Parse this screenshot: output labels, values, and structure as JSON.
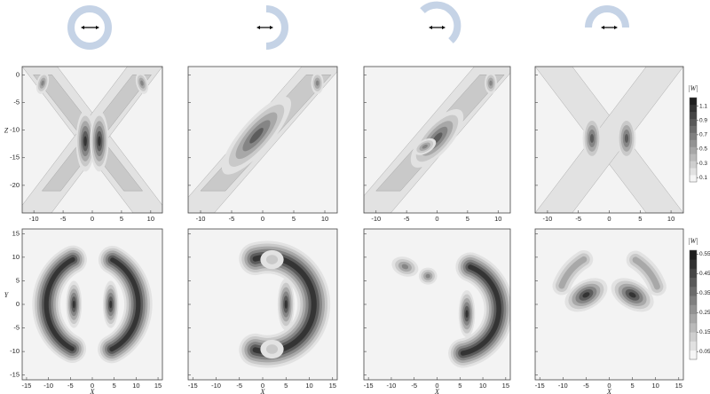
{
  "chart_data": [
    {
      "type": "contour",
      "xlim": [
        -12,
        12
      ],
      "ylim": [
        -25,
        1.5
      ],
      "xticks": [
        -10,
        -5,
        0,
        5,
        10
      ],
      "yticks": [
        0,
        -5,
        -10,
        -15,
        -20
      ],
      "ylabel": "Z",
      "ytick_labels": true
    },
    {
      "type": "contour",
      "xlim": [
        -12,
        12
      ],
      "ylim": [
        -25,
        1.5
      ],
      "xticks": [
        -10,
        -5,
        0,
        5,
        10
      ],
      "yticks": [
        0,
        -5,
        -10,
        -15,
        -20
      ],
      "ytick_labels": false
    },
    {
      "type": "contour",
      "xlim": [
        -12,
        12
      ],
      "ylim": [
        -25,
        1.5
      ],
      "xticks": [
        -10,
        -5,
        0,
        5,
        10
      ],
      "yticks": [
        0,
        -5,
        -10,
        -15,
        -20
      ],
      "ytick_labels": false
    },
    {
      "type": "contour",
      "xlim": [
        -12,
        12
      ],
      "ylim": [
        -25,
        1.5
      ],
      "xticks": [
        -10,
        -5,
        0,
        5,
        10
      ],
      "yticks": [
        0,
        -5,
        -10,
        -15,
        -20
      ],
      "ytick_labels": false,
      "colorbar": {
        "label": "|W|",
        "lim": [
          0.04,
          1.22
        ],
        "ticks": [
          0.1,
          0.3,
          0.5,
          0.7,
          0.9,
          1.1
        ]
      }
    },
    {
      "type": "contour",
      "xlim": [
        -16,
        16
      ],
      "ylim": [
        -16,
        16
      ],
      "xticks": [
        -15,
        -10,
        -5,
        0,
        5,
        10,
        15
      ],
      "yticks": [
        -15,
        -10,
        -5,
        0,
        5,
        10,
        15
      ],
      "xlabel": "X",
      "ylabel": "Y",
      "ytick_labels": true
    },
    {
      "type": "contour",
      "xlim": [
        -16,
        16
      ],
      "ylim": [
        -16,
        16
      ],
      "xticks": [
        -15,
        -10,
        -5,
        0,
        5,
        10,
        15
      ],
      "yticks": [
        -15,
        -10,
        -5,
        0,
        5,
        10,
        15
      ],
      "xlabel": "X",
      "ytick_labels": false
    },
    {
      "type": "contour",
      "xlim": [
        -16,
        16
      ],
      "ylim": [
        -16,
        16
      ],
      "xticks": [
        -15,
        -10,
        -5,
        0,
        5,
        10,
        15
      ],
      "yticks": [
        -15,
        -10,
        -5,
        0,
        5,
        10,
        15
      ],
      "xlabel": "X",
      "ytick_labels": false
    },
    {
      "type": "contour",
      "xlim": [
        -16,
        16
      ],
      "ylim": [
        -16,
        16
      ],
      "xticks": [
        -15,
        -10,
        -5,
        0,
        5,
        10,
        15
      ],
      "yticks": [
        -15,
        -10,
        -5,
        0,
        5,
        10,
        15
      ],
      "xlabel": "X",
      "ytick_labels": false,
      "colorbar": {
        "label": "|W|",
        "lim": [
          0.01,
          0.57
        ],
        "ticks": [
          0.05,
          0.15,
          0.25,
          0.35,
          0.45,
          0.55
        ]
      }
    }
  ]
}
